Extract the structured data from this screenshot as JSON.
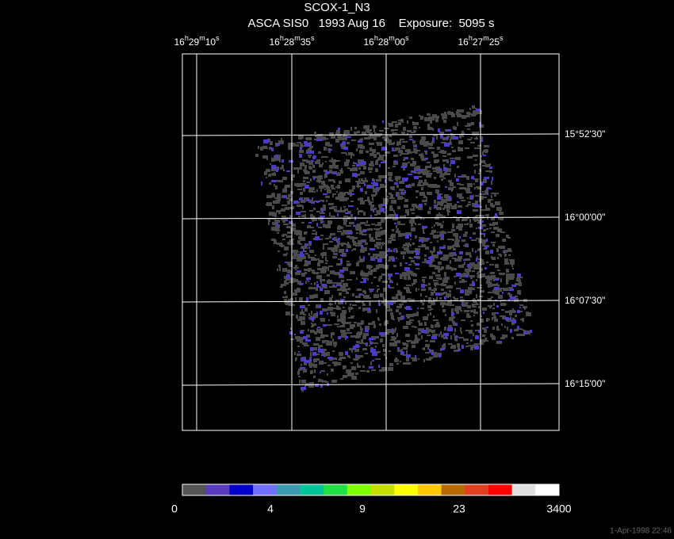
{
  "title": "SCOX-1_N3",
  "subtitle": "ASCA SIS0   1993 Aug 16    Exposure:  5095 s",
  "ra_labels": [
    [
      "16",
      "h",
      "29",
      "m",
      "10",
      "s"
    ],
    [
      "16",
      "h",
      "28",
      "m",
      "35",
      "s"
    ],
    [
      "16",
      "h",
      "28",
      "m",
      "00",
      "s"
    ],
    [
      "16",
      "h",
      "27",
      "m",
      "25",
      "s"
    ]
  ],
  "dec_labels": [
    "15°52'30\"",
    "16°00'00\"",
    "16°07'30\"",
    "16°15'00\""
  ],
  "colorbar": {
    "colors": [
      "#555555",
      "#5a3cc0",
      "#0000c8",
      "#7070ff",
      "#3a9ab0",
      "#00c49a",
      "#22e044",
      "#7fff00",
      "#c4e000",
      "#ffff00",
      "#ffc800",
      "#b86a00",
      "#e04020",
      "#ff0000",
      "#e0e0e0",
      "#ffffff"
    ],
    "labels": [
      "0",
      "4",
      "9",
      "23",
      "3400"
    ]
  },
  "timestamp": "1-Apr-1998 22:46"
}
